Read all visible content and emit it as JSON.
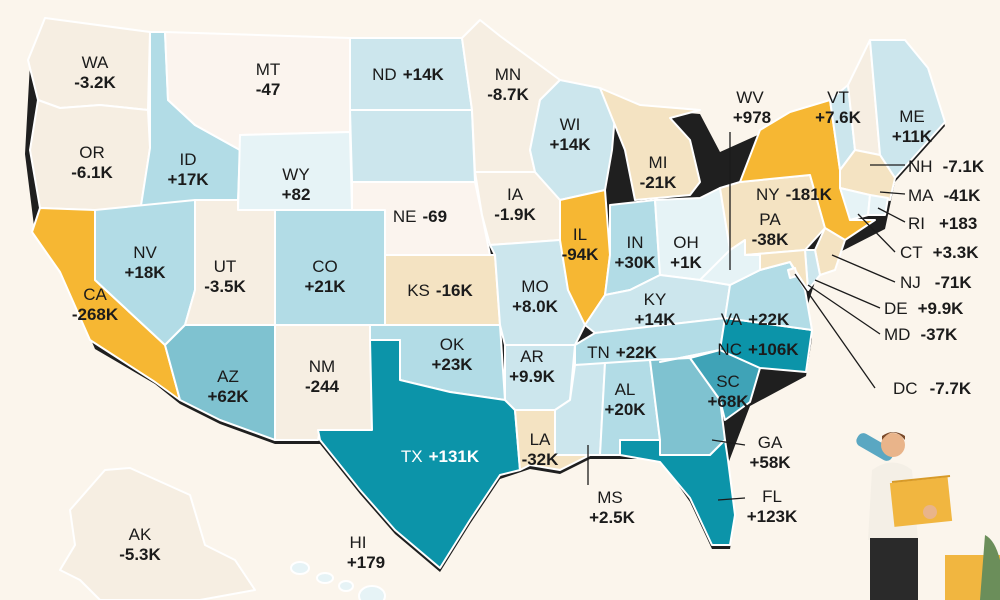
{
  "colors": {
    "background": "#fbf5ec",
    "loss_large": "#f6b733",
    "loss_medium": "#f4e3c2",
    "loss_small": "#f6eee2",
    "neutral": "#fbf4ee",
    "gain_small": "#e6f3f6",
    "gain_light": "#cce6ed",
    "gain_medium": "#b2dce6",
    "gain_mid_high": "#7fc2d0",
    "gain_high": "#3fa3b7",
    "gain_large": "#0c94a9"
  },
  "states": [
    {
      "code": "WA",
      "value": "-3.2K",
      "tier": "loss_small"
    },
    {
      "code": "OR",
      "value": "-6.1K",
      "tier": "loss_small"
    },
    {
      "code": "CA",
      "value": "-268K",
      "tier": "loss_large"
    },
    {
      "code": "ID",
      "value": "+17K",
      "tier": "gain_medium"
    },
    {
      "code": "NV",
      "value": "+18K",
      "tier": "gain_medium"
    },
    {
      "code": "MT",
      "value": "-47",
      "tier": "neutral"
    },
    {
      "code": "WY",
      "value": "+82",
      "tier": "gain_small"
    },
    {
      "code": "UT",
      "value": "-3.5K",
      "tier": "loss_small"
    },
    {
      "code": "AZ",
      "value": "+62K",
      "tier": "gain_mid_high"
    },
    {
      "code": "CO",
      "value": "+21K",
      "tier": "gain_medium"
    },
    {
      "code": "NM",
      "value": "-244",
      "tier": "loss_small"
    },
    {
      "code": "ND",
      "value": "+14K",
      "tier": "gain_light"
    },
    {
      "code": "SD",
      "value": "",
      "tier": "gain_light"
    },
    {
      "code": "NE",
      "value": "-69",
      "tier": "neutral"
    },
    {
      "code": "KS",
      "value": "-16K",
      "tier": "loss_medium"
    },
    {
      "code": "OK",
      "value": "+23K",
      "tier": "gain_medium"
    },
    {
      "code": "TX",
      "value": "+131K",
      "tier": "gain_large"
    },
    {
      "code": "MN",
      "value": "-8.7K",
      "tier": "loss_small"
    },
    {
      "code": "IA",
      "value": "-1.9K",
      "tier": "loss_small"
    },
    {
      "code": "MO",
      "value": "+8.0K",
      "tier": "gain_light"
    },
    {
      "code": "AR",
      "value": "+9.9K",
      "tier": "gain_light"
    },
    {
      "code": "LA",
      "value": "-32K",
      "tier": "loss_medium"
    },
    {
      "code": "WI",
      "value": "+14K",
      "tier": "gain_light"
    },
    {
      "code": "IL",
      "value": "-94K",
      "tier": "loss_large"
    },
    {
      "code": "MI",
      "value": "-21K",
      "tier": "loss_medium"
    },
    {
      "code": "IN",
      "value": "+30K",
      "tier": "gain_medium"
    },
    {
      "code": "OH",
      "value": "+1K",
      "tier": "gain_small"
    },
    {
      "code": "KY",
      "value": "+14K",
      "tier": "gain_light"
    },
    {
      "code": "TN",
      "value": "+22K",
      "tier": "gain_medium"
    },
    {
      "code": "MS",
      "value": "+2.5K",
      "tier": "gain_light"
    },
    {
      "code": "AL",
      "value": "+20K",
      "tier": "gain_medium"
    },
    {
      "code": "GA",
      "value": "+58K",
      "tier": "gain_mid_high"
    },
    {
      "code": "FL",
      "value": "+123K",
      "tier": "gain_large"
    },
    {
      "code": "SC",
      "value": "+68K",
      "tier": "gain_high"
    },
    {
      "code": "NC",
      "value": "+106K",
      "tier": "gain_large"
    },
    {
      "code": "VA",
      "value": "+22K",
      "tier": "gain_medium"
    },
    {
      "code": "WV",
      "value": "+978",
      "tier": "gain_small"
    },
    {
      "code": "PA",
      "value": "-38K",
      "tier": "loss_medium"
    },
    {
      "code": "NY",
      "value": "-181K",
      "tier": "loss_large"
    },
    {
      "code": "VT",
      "value": "+7.6K",
      "tier": "gain_light"
    },
    {
      "code": "NH",
      "value": "-7.1K",
      "tier": "loss_small"
    },
    {
      "code": "ME",
      "value": "+11K",
      "tier": "gain_light"
    },
    {
      "code": "MA",
      "value": "-41K",
      "tier": "loss_medium"
    },
    {
      "code": "RI",
      "value": "+183",
      "tier": "gain_small"
    },
    {
      "code": "CT",
      "value": "+3.3K",
      "tier": "gain_small"
    },
    {
      "code": "NJ",
      "value": "-71K",
      "tier": "loss_medium"
    },
    {
      "code": "DE",
      "value": "+9.9K",
      "tier": "gain_light"
    },
    {
      "code": "MD",
      "value": "-37K",
      "tier": "loss_medium"
    },
    {
      "code": "DC",
      "value": "-7.7K",
      "tier": "loss_small"
    },
    {
      "code": "AK",
      "value": "-5.3K",
      "tier": "loss_small"
    },
    {
      "code": "HI",
      "value": "+179",
      "tier": "gain_small"
    }
  ]
}
